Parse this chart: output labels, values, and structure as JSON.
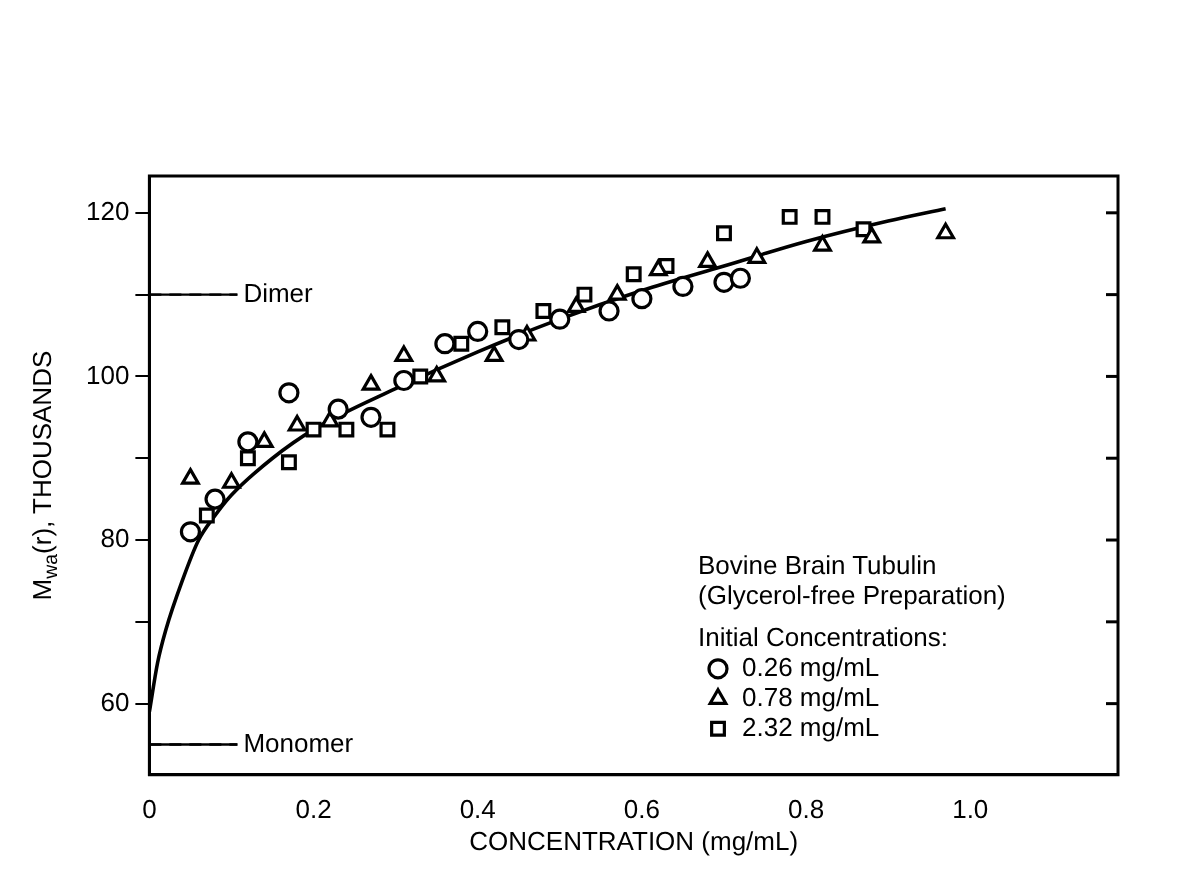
{
  "chart_data": {
    "type": "scatter",
    "xlabel": "CONCENTRATION (mg/mL)",
    "ylabel": "M$_{wa}$(r), THOUSANDS",
    "legend_title": "Initial Concentrations:",
    "annotations": [
      "Bovine Brain Tubulin",
      "(Glycerol-free Preparation)"
    ],
    "xlim": [
      0,
      1.18
    ],
    "ylim": [
      51.3,
      124.5
    ],
    "xticks": [
      0,
      0.2,
      0.4,
      0.6,
      0.8,
      {
        "value": 1,
        "label": "1.0"
      }
    ],
    "yticks": [
      60,
      {
        "value": 70,
        "label": null
      },
      80,
      {
        "value": 90,
        "label": null
      },
      100,
      {
        "value": 110,
        "label": null
      },
      120
    ],
    "grid": false,
    "legend": "bottom right",
    "ref_lines": [
      {
        "axis": "y",
        "value": 110,
        "label": "Dimer",
        "line_style": "dashed",
        "color": "#000000"
      },
      {
        "axis": "y",
        "value": 55,
        "label": "Monomer",
        "line_style": "dashed",
        "color": "#000000"
      }
    ],
    "series": [
      {
        "name": "0.26 mg/mL",
        "color": "#000000",
        "marker": "circle",
        "x": [
          0.05,
          0.08,
          0.12,
          0.17,
          0.23,
          0.27,
          0.31,
          0.36,
          0.4,
          0.45,
          0.5,
          0.56,
          0.6,
          0.65,
          0.7,
          0.72
        ],
        "values": [
          81,
          85,
          92,
          98,
          96,
          95,
          99.5,
          104,
          105.5,
          104.5,
          107,
          108,
          109.5,
          111,
          111.5,
          112
        ]
      },
      {
        "name": "0.78 mg/mL",
        "color": "#000000",
        "marker": "triangle",
        "x": [
          0.05,
          0.1,
          0.14,
          0.18,
          0.22,
          0.27,
          0.31,
          0.35,
          0.42,
          0.46,
          0.52,
          0.57,
          0.62,
          0.68,
          0.74,
          0.82,
          0.88,
          0.97
        ],
        "values": [
          87.5,
          87,
          92,
          94,
          94.5,
          99,
          102.5,
          100,
          102.5,
          105,
          108.5,
          110,
          113,
          114,
          114.5,
          116,
          117,
          117.5
        ]
      },
      {
        "name": "2.32 mg/mL",
        "color": "#000000",
        "marker": "square",
        "x": [
          0.07,
          0.12,
          0.17,
          0.2,
          0.24,
          0.29,
          0.33,
          0.38,
          0.43,
          0.48,
          0.53,
          0.59,
          0.63,
          0.7,
          0.78,
          0.82,
          0.87
        ],
        "values": [
          83,
          90,
          89.5,
          93.5,
          93.5,
          93.5,
          100,
          104,
          106,
          108,
          110,
          112.5,
          113.5,
          117.5,
          119.5,
          119.5,
          118
        ]
      },
      {
        "type": "line",
        "color": "#000000",
        "marker": "none",
        "line_style": "solid",
        "x": [
          0,
          0.01,
          0.02,
          0.04,
          0.06,
          0.08,
          0.1,
          0.15,
          0.2,
          0.3,
          0.4,
          0.5,
          0.6,
          0.7,
          0.8,
          0.9,
          0.97
        ],
        "values": [
          59,
          65,
          69,
          75,
          80,
          83,
          85.5,
          90,
          93.5,
          98.5,
          103,
          107,
          110.5,
          113.5,
          116.5,
          119,
          120.5
        ]
      }
    ]
  }
}
